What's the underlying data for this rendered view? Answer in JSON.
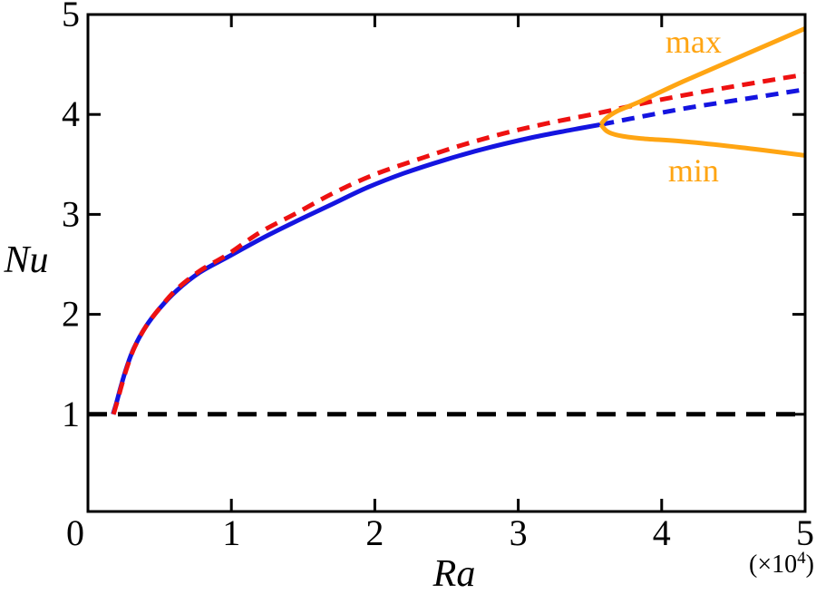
{
  "figure": {
    "ylabel": "Nu",
    "xlabel": "Ra",
    "scale_note": {
      "prefix": "(×10",
      "sup": "4",
      "suffix": ")"
    }
  },
  "colors": {
    "blue": "#1414e0",
    "red": "#ee1111",
    "orange": "#ffa513",
    "black": "#000000"
  },
  "chart_data": {
    "type": "line",
    "title": "",
    "xlabel": "Ra",
    "ylabel": "Nu",
    "x_unit_note": "(×10⁴)",
    "xlim": [
      0,
      5
    ],
    "ylim": [
      0,
      5
    ],
    "x_ticks": [
      0,
      1,
      2,
      3,
      4,
      5
    ],
    "y_ticks": [
      1,
      2,
      3,
      4,
      5
    ],
    "x_tick_labels": [
      "0",
      "1",
      "2",
      "3",
      "4",
      "5"
    ],
    "y_tick_labels": [
      "1",
      "2",
      "3",
      "4",
      "5"
    ],
    "grid": false,
    "legend": "none",
    "series": [
      {
        "key": "black-dashed-nu1",
        "name": "horizontal dashed line Nu = 1",
        "color": "black",
        "style": "dashed",
        "dash": "long",
        "points": [
          [
            0,
            1
          ],
          [
            5,
            1
          ]
        ]
      },
      {
        "key": "blue-solid",
        "name": "blue solid branch",
        "color": "blue",
        "style": "solid",
        "dash": null,
        "points": [
          [
            0.175,
            1.0
          ],
          [
            0.2,
            1.12
          ],
          [
            0.23,
            1.28
          ],
          [
            0.27,
            1.47
          ],
          [
            0.32,
            1.66
          ],
          [
            0.4,
            1.87
          ],
          [
            0.5,
            2.06
          ],
          [
            0.62,
            2.24
          ],
          [
            0.78,
            2.42
          ],
          [
            0.97,
            2.57
          ],
          [
            1.2,
            2.75
          ],
          [
            1.45,
            2.93
          ],
          [
            1.7,
            3.1
          ],
          [
            1.95,
            3.27
          ],
          [
            2.2,
            3.41
          ],
          [
            2.5,
            3.55
          ],
          [
            2.8,
            3.67
          ],
          [
            3.1,
            3.77
          ],
          [
            3.35,
            3.84
          ],
          [
            3.58,
            3.9
          ]
        ]
      },
      {
        "key": "blue-dashed",
        "name": "blue dashed continuation",
        "color": "blue",
        "style": "dashed",
        "dash": "short",
        "points": [
          [
            3.58,
            3.9
          ],
          [
            3.9,
            3.99
          ],
          [
            4.2,
            4.07
          ],
          [
            4.6,
            4.16
          ],
          [
            5.0,
            4.25
          ]
        ]
      },
      {
        "key": "red-dashed",
        "name": "red dashed branch",
        "color": "red",
        "style": "dashed",
        "dash": "short",
        "points": [
          [
            0.178,
            1.0
          ],
          [
            0.205,
            1.13
          ],
          [
            0.235,
            1.29
          ],
          [
            0.275,
            1.48
          ],
          [
            0.325,
            1.67
          ],
          [
            0.405,
            1.88
          ],
          [
            0.505,
            2.07
          ],
          [
            0.625,
            2.26
          ],
          [
            0.785,
            2.44
          ],
          [
            0.975,
            2.6
          ],
          [
            1.2,
            2.82
          ],
          [
            1.45,
            3.01
          ],
          [
            1.72,
            3.22
          ],
          [
            2.0,
            3.4
          ],
          [
            2.3,
            3.55
          ],
          [
            2.6,
            3.69
          ],
          [
            2.9,
            3.81
          ],
          [
            3.2,
            3.91
          ],
          [
            3.58,
            4.02
          ],
          [
            4.0,
            4.15
          ],
          [
            4.5,
            4.28
          ],
          [
            5.0,
            4.4
          ]
        ]
      },
      {
        "key": "orange-max",
        "name": "orange max branch",
        "color": "orange",
        "style": "solid",
        "dash": null,
        "points": [
          [
            3.575,
            3.9
          ],
          [
            3.62,
            3.97
          ],
          [
            3.7,
            4.04
          ],
          [
            3.85,
            4.13
          ],
          [
            4.15,
            4.33
          ],
          [
            4.55,
            4.58
          ],
          [
            5.0,
            4.86
          ]
        ]
      },
      {
        "key": "orange-min",
        "name": "orange min branch",
        "color": "orange",
        "style": "solid",
        "dash": null,
        "points": [
          [
            3.575,
            3.9
          ],
          [
            3.62,
            3.83
          ],
          [
            3.7,
            3.79
          ],
          [
            3.85,
            3.76
          ],
          [
            4.15,
            3.73
          ],
          [
            4.55,
            3.67
          ],
          [
            5.0,
            3.59
          ]
        ]
      }
    ],
    "annotations": [
      {
        "key": "max",
        "text": "max",
        "x": 4.222,
        "y": 4.618,
        "color": "orange"
      },
      {
        "key": "min",
        "text": "min",
        "x": 4.222,
        "y": 3.33,
        "color": "orange"
      }
    ]
  }
}
